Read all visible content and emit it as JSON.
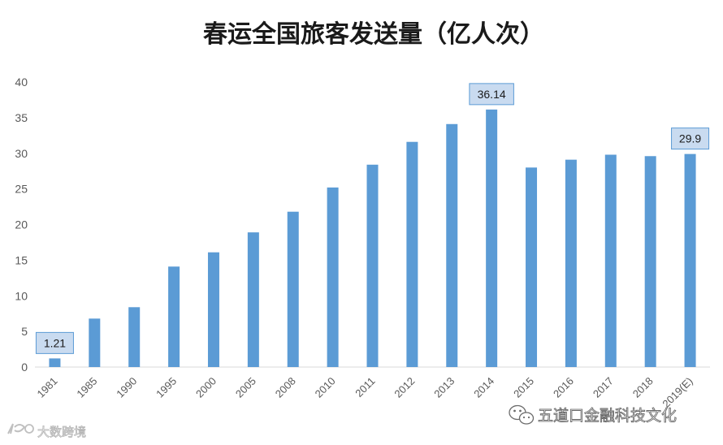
{
  "chart_data": {
    "type": "bar",
    "title": "春运全国旅客发送量（亿人次）",
    "xlabel": "",
    "ylabel": "",
    "ylim": [
      0,
      40
    ],
    "yticks": [
      0,
      5,
      10,
      15,
      20,
      25,
      30,
      35,
      40
    ],
    "grid": false,
    "bar_color": "#5b9bd5",
    "label_bg_color": "#c9dbf0",
    "label_border_color": "#5b9bd5",
    "categories": [
      "1981",
      "1985",
      "1990",
      "1995",
      "2000",
      "2005",
      "2008",
      "2010",
      "2011",
      "2012",
      "2013",
      "2014",
      "2015",
      "2016",
      "2017",
      "2018",
      "2019(E)"
    ],
    "values": [
      1.21,
      6.8,
      8.4,
      14.1,
      16.1,
      18.9,
      21.8,
      25.2,
      28.4,
      31.6,
      34.1,
      36.14,
      28.0,
      29.1,
      29.8,
      29.6,
      29.9
    ],
    "data_labels": [
      {
        "category": "1981",
        "text": "1.21"
      },
      {
        "category": "2014",
        "text": "36.14"
      },
      {
        "category": "2019(E)",
        "text": "29.9"
      }
    ]
  },
  "watermarks": {
    "left": "大数跨境",
    "right": "五道口金融科技文化"
  },
  "icons": {
    "left": "kcb-logo-icon",
    "right": "wechat-icon"
  }
}
